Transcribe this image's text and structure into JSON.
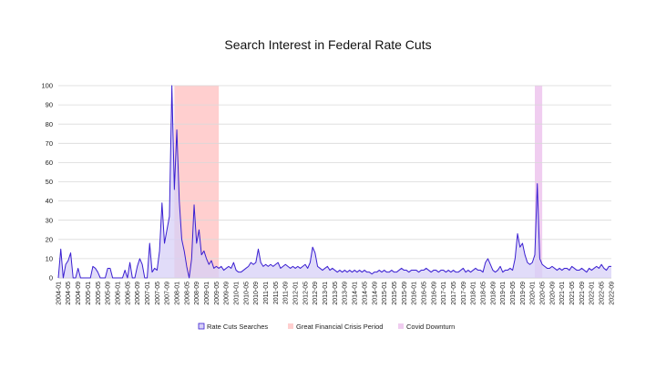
{
  "chart_data": {
    "type": "area",
    "title": "Search Interest in Federal Rate Cuts",
    "xlabel": "",
    "ylabel": "",
    "ylim": [
      0,
      100
    ],
    "yticks": [
      0,
      10,
      20,
      30,
      40,
      50,
      60,
      70,
      80,
      90,
      100
    ],
    "grid": true,
    "legend_position": "bottom",
    "x_start": "2004-01",
    "x_end": "2022-09",
    "x_tick_labels": [
      "2004-01",
      "2004-05",
      "2004-09",
      "2005-01",
      "2005-05",
      "2005-09",
      "2006-01",
      "2006-05",
      "2006-09",
      "2007-01",
      "2007-05",
      "2007-09",
      "2008-01",
      "2008-05",
      "2008-09",
      "2009-01",
      "2009-05",
      "2009-09",
      "2010-01",
      "2010-05",
      "2010-09",
      "2011-01",
      "2011-05",
      "2011-09",
      "2012-01",
      "2012-05",
      "2012-09",
      "2013-01",
      "2013-05",
      "2013-09",
      "2014-01",
      "2014-05",
      "2014-09",
      "2015-01",
      "2015-05",
      "2015-09",
      "2016-01",
      "2016-05",
      "2016-09",
      "2017-01",
      "2017-05",
      "2017-09",
      "2018-01",
      "2018-05",
      "2018-09",
      "2019-01",
      "2019-05",
      "2019-09",
      "2020-01",
      "2020-05",
      "2020-09",
      "2021-01",
      "2021-05",
      "2021-09",
      "2022-01",
      "2022-05",
      "2022-09"
    ],
    "series": [
      {
        "name": "Rate Cuts Searches",
        "color": "#3a1fd1",
        "fill": "#d7d0f7",
        "points": [
          [
            "2004-01",
            0
          ],
          [
            "2004-02",
            15
          ],
          [
            "2004-03",
            0
          ],
          [
            "2004-04",
            7
          ],
          [
            "2004-05",
            9
          ],
          [
            "2004-06",
            13
          ],
          [
            "2004-07",
            0
          ],
          [
            "2004-08",
            0
          ],
          [
            "2004-09",
            5
          ],
          [
            "2004-10",
            0
          ],
          [
            "2004-11",
            0
          ],
          [
            "2004-12",
            0
          ],
          [
            "2005-01",
            0
          ],
          [
            "2005-02",
            0
          ],
          [
            "2005-03",
            6
          ],
          [
            "2005-04",
            5
          ],
          [
            "2005-05",
            3
          ],
          [
            "2005-06",
            0
          ],
          [
            "2005-07",
            0
          ],
          [
            "2005-08",
            0
          ],
          [
            "2005-09",
            5
          ],
          [
            "2005-10",
            5
          ],
          [
            "2005-11",
            0
          ],
          [
            "2005-12",
            0
          ],
          [
            "2006-01",
            0
          ],
          [
            "2006-02",
            0
          ],
          [
            "2006-03",
            0
          ],
          [
            "2006-04",
            4
          ],
          [
            "2006-05",
            0
          ],
          [
            "2006-06",
            8
          ],
          [
            "2006-07",
            0
          ],
          [
            "2006-08",
            0
          ],
          [
            "2006-09",
            6
          ],
          [
            "2006-10",
            10
          ],
          [
            "2006-11",
            7
          ],
          [
            "2006-12",
            0
          ],
          [
            "2007-01",
            0
          ],
          [
            "2007-02",
            18
          ],
          [
            "2007-03",
            3
          ],
          [
            "2007-04",
            5
          ],
          [
            "2007-05",
            4
          ],
          [
            "2007-06",
            14
          ],
          [
            "2007-07",
            39
          ],
          [
            "2007-08",
            18
          ],
          [
            "2007-09",
            25
          ],
          [
            "2007-10",
            32
          ],
          [
            "2007-11",
            100
          ],
          [
            "2007-12",
            46
          ],
          [
            "2008-01",
            77
          ],
          [
            "2008-02",
            40
          ],
          [
            "2008-03",
            20
          ],
          [
            "2008-04",
            14
          ],
          [
            "2008-05",
            6
          ],
          [
            "2008-06",
            0
          ],
          [
            "2008-07",
            10
          ],
          [
            "2008-08",
            38
          ],
          [
            "2008-09",
            18
          ],
          [
            "2008-10",
            25
          ],
          [
            "2008-11",
            12
          ],
          [
            "2008-12",
            14
          ],
          [
            "2009-01",
            10
          ],
          [
            "2009-02",
            7
          ],
          [
            "2009-03",
            9
          ],
          [
            "2009-04",
            5
          ],
          [
            "2009-05",
            6
          ],
          [
            "2009-06",
            5
          ],
          [
            "2009-07",
            6
          ],
          [
            "2009-08",
            4
          ],
          [
            "2009-09",
            5
          ],
          [
            "2009-10",
            6
          ],
          [
            "2009-11",
            5
          ],
          [
            "2009-12",
            8
          ],
          [
            "2010-01",
            4
          ],
          [
            "2010-02",
            3
          ],
          [
            "2010-03",
            3
          ],
          [
            "2010-04",
            4
          ],
          [
            "2010-05",
            5
          ],
          [
            "2010-06",
            6
          ],
          [
            "2010-07",
            8
          ],
          [
            "2010-08",
            7
          ],
          [
            "2010-09",
            8
          ],
          [
            "2010-10",
            15
          ],
          [
            "2010-11",
            8
          ],
          [
            "2010-12",
            6
          ],
          [
            "2011-01",
            7
          ],
          [
            "2011-02",
            6
          ],
          [
            "2011-03",
            7
          ],
          [
            "2011-04",
            6
          ],
          [
            "2011-05",
            7
          ],
          [
            "2011-06",
            8
          ],
          [
            "2011-07",
            5
          ],
          [
            "2011-08",
            6
          ],
          [
            "2011-09",
            7
          ],
          [
            "2011-10",
            6
          ],
          [
            "2011-11",
            5
          ],
          [
            "2011-12",
            6
          ],
          [
            "2012-01",
            5
          ],
          [
            "2012-02",
            6
          ],
          [
            "2012-03",
            5
          ],
          [
            "2012-04",
            6
          ],
          [
            "2012-05",
            7
          ],
          [
            "2012-06",
            5
          ],
          [
            "2012-07",
            8
          ],
          [
            "2012-08",
            16
          ],
          [
            "2012-09",
            13
          ],
          [
            "2012-10",
            6
          ],
          [
            "2012-11",
            5
          ],
          [
            "2012-12",
            4
          ],
          [
            "2013-01",
            5
          ],
          [
            "2013-02",
            6
          ],
          [
            "2013-03",
            4
          ],
          [
            "2013-04",
            5
          ],
          [
            "2013-05",
            4
          ],
          [
            "2013-06",
            3
          ],
          [
            "2013-07",
            4
          ],
          [
            "2013-08",
            3
          ],
          [
            "2013-09",
            4
          ],
          [
            "2013-10",
            3
          ],
          [
            "2013-11",
            4
          ],
          [
            "2013-12",
            3
          ],
          [
            "2014-01",
            4
          ],
          [
            "2014-02",
            3
          ],
          [
            "2014-03",
            4
          ],
          [
            "2014-04",
            3
          ],
          [
            "2014-05",
            4
          ],
          [
            "2014-06",
            3
          ],
          [
            "2014-07",
            3
          ],
          [
            "2014-08",
            2
          ],
          [
            "2014-09",
            3
          ],
          [
            "2014-10",
            3
          ],
          [
            "2014-11",
            4
          ],
          [
            "2014-12",
            3
          ],
          [
            "2015-01",
            4
          ],
          [
            "2015-02",
            3
          ],
          [
            "2015-03",
            3
          ],
          [
            "2015-04",
            4
          ],
          [
            "2015-05",
            3
          ],
          [
            "2015-06",
            3
          ],
          [
            "2015-07",
            4
          ],
          [
            "2015-08",
            5
          ],
          [
            "2015-09",
            4
          ],
          [
            "2015-10",
            4
          ],
          [
            "2015-11",
            3
          ],
          [
            "2015-12",
            4
          ],
          [
            "2016-01",
            4
          ],
          [
            "2016-02",
            4
          ],
          [
            "2016-03",
            3
          ],
          [
            "2016-04",
            4
          ],
          [
            "2016-05",
            4
          ],
          [
            "2016-06",
            5
          ],
          [
            "2016-07",
            4
          ],
          [
            "2016-08",
            3
          ],
          [
            "2016-09",
            4
          ],
          [
            "2016-10",
            4
          ],
          [
            "2016-11",
            3
          ],
          [
            "2016-12",
            4
          ],
          [
            "2017-01",
            4
          ],
          [
            "2017-02",
            3
          ],
          [
            "2017-03",
            4
          ],
          [
            "2017-04",
            3
          ],
          [
            "2017-05",
            4
          ],
          [
            "2017-06",
            3
          ],
          [
            "2017-07",
            3
          ],
          [
            "2017-08",
            4
          ],
          [
            "2017-09",
            5
          ],
          [
            "2017-10",
            3
          ],
          [
            "2017-11",
            4
          ],
          [
            "2017-12",
            3
          ],
          [
            "2018-01",
            4
          ],
          [
            "2018-02",
            5
          ],
          [
            "2018-03",
            4
          ],
          [
            "2018-04",
            4
          ],
          [
            "2018-05",
            3
          ],
          [
            "2018-06",
            8
          ],
          [
            "2018-07",
            10
          ],
          [
            "2018-08",
            7
          ],
          [
            "2018-09",
            4
          ],
          [
            "2018-10",
            3
          ],
          [
            "2018-11",
            4
          ],
          [
            "2018-12",
            6
          ],
          [
            "2019-01",
            3
          ],
          [
            "2019-02",
            4
          ],
          [
            "2019-03",
            4
          ],
          [
            "2019-04",
            5
          ],
          [
            "2019-05",
            4
          ],
          [
            "2019-06",
            10
          ],
          [
            "2019-07",
            23
          ],
          [
            "2019-08",
            16
          ],
          [
            "2019-09",
            18
          ],
          [
            "2019-10",
            12
          ],
          [
            "2019-11",
            8
          ],
          [
            "2019-12",
            7
          ],
          [
            "2020-01",
            8
          ],
          [
            "2020-02",
            12
          ],
          [
            "2020-03",
            49
          ],
          [
            "2020-04",
            10
          ],
          [
            "2020-05",
            7
          ],
          [
            "2020-06",
            6
          ],
          [
            "2020-07",
            5
          ],
          [
            "2020-08",
            5
          ],
          [
            "2020-09",
            6
          ],
          [
            "2020-10",
            5
          ],
          [
            "2020-11",
            4
          ],
          [
            "2020-12",
            5
          ],
          [
            "2021-01",
            4
          ],
          [
            "2021-02",
            5
          ],
          [
            "2021-03",
            5
          ],
          [
            "2021-04",
            4
          ],
          [
            "2021-05",
            6
          ],
          [
            "2021-06",
            5
          ],
          [
            "2021-07",
            4
          ],
          [
            "2021-08",
            4
          ],
          [
            "2021-09",
            5
          ],
          [
            "2021-10",
            4
          ],
          [
            "2021-11",
            3
          ],
          [
            "2021-12",
            5
          ],
          [
            "2022-01",
            4
          ],
          [
            "2022-02",
            5
          ],
          [
            "2022-03",
            6
          ],
          [
            "2022-04",
            5
          ],
          [
            "2022-05",
            7
          ],
          [
            "2022-06",
            5
          ],
          [
            "2022-07",
            4
          ],
          [
            "2022-08",
            6
          ],
          [
            "2022-09",
            6
          ]
        ]
      }
    ],
    "shaded_periods": [
      {
        "name": "Great Financial Crisis Period",
        "start": "2007-12",
        "end": "2009-06",
        "color": "#ffcfcf"
      },
      {
        "name": "Covid Downturn",
        "start": "2020-02",
        "end": "2020-05",
        "color": "#f0cdf0"
      }
    ]
  }
}
